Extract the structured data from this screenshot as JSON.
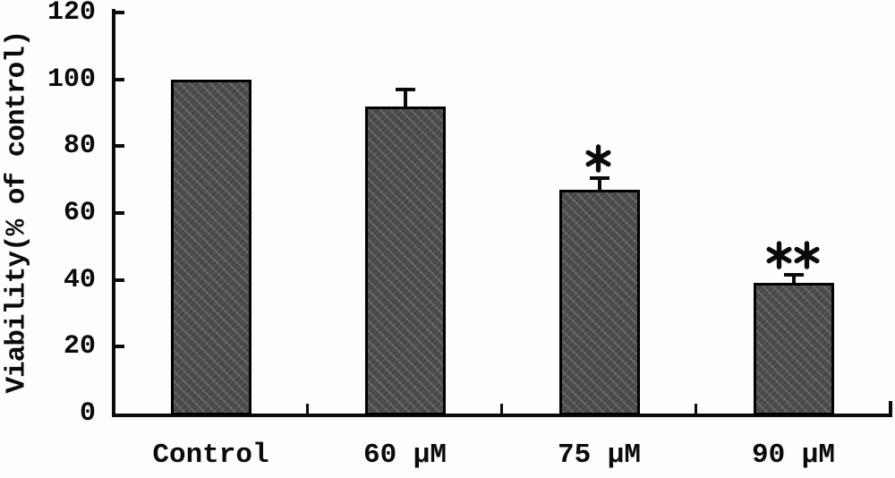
{
  "chart_data": {
    "type": "bar",
    "title": "",
    "xlabel": "",
    "ylabel": "Viability(% of control)",
    "categories": [
      "Control",
      "60 μM",
      "75 μM",
      "90 μM"
    ],
    "values": [
      100,
      92,
      67,
      39
    ],
    "errors": [
      0,
      5,
      3.5,
      2.5
    ],
    "annotations": [
      "",
      "",
      "*",
      "**"
    ],
    "ylim": [
      0,
      120
    ],
    "yticks": [
      0,
      20,
      40,
      60,
      80,
      100,
      120
    ],
    "grid": false,
    "legend": "none",
    "bar_fill_color": "#565656",
    "bar_border_color": "#000000",
    "axis_color": "#0b0b0b",
    "background_color": "#fdfdfd"
  }
}
